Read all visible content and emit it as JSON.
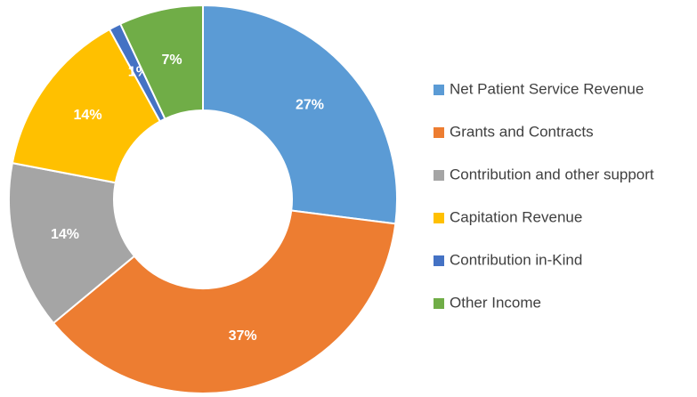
{
  "chart_data": {
    "type": "donut",
    "categories": [
      "Net Patient Service Revenue",
      "Grants and Contracts",
      "Contribution and other support",
      "Capitation Revenue",
      "Contribution in-Kind",
      "Other Income"
    ],
    "values": [
      27,
      37,
      14,
      14,
      1,
      7
    ],
    "value_labels": [
      "27%",
      "37%",
      "14%",
      "14%",
      "1%",
      "7%"
    ],
    "colors": [
      "#5b9bd5",
      "#ed7d31",
      "#a5a5a5",
      "#ffc000",
      "#4472c4",
      "#70ad47"
    ],
    "legend": "right"
  }
}
